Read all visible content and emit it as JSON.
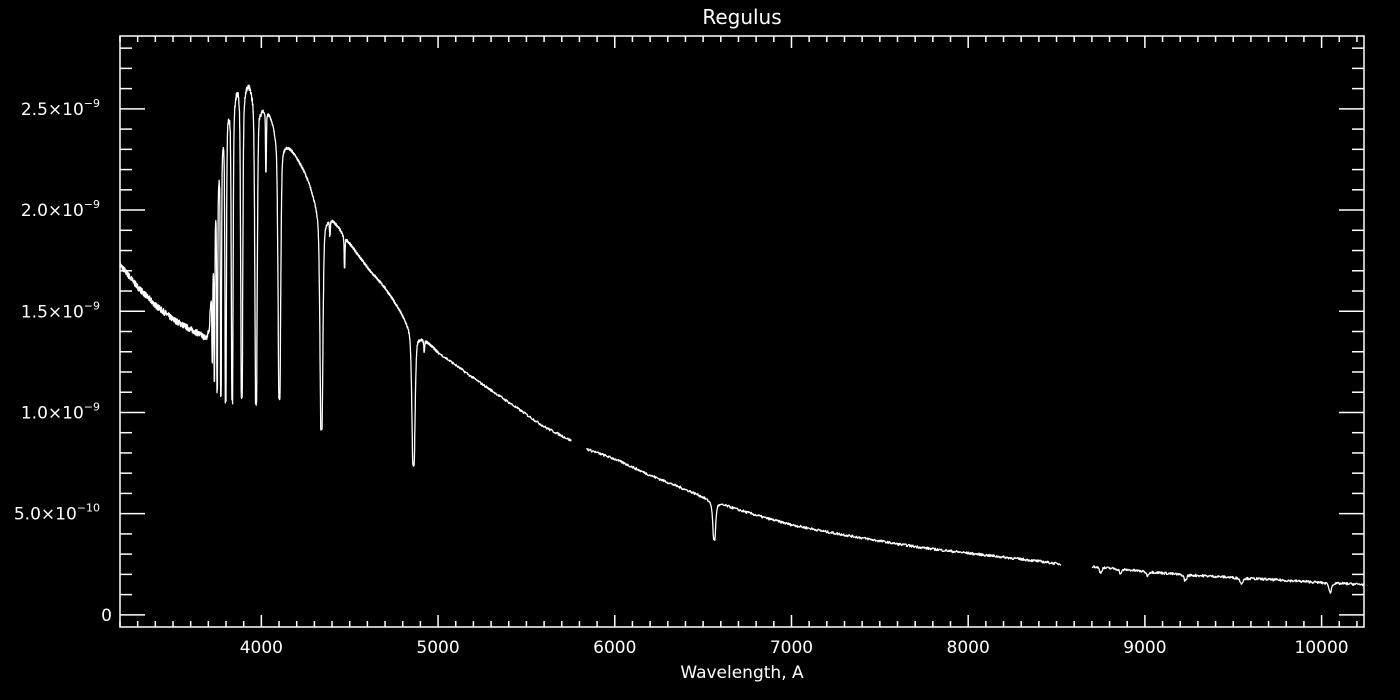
{
  "chart_data": {
    "type": "line",
    "title": "Regulus",
    "xlabel": "Wavelength, A",
    "ylabel": "",
    "xlim": [
      3200,
      10240
    ],
    "ylim": [
      -6e-11,
      2.86e-09
    ],
    "grid": false,
    "x_ticks": [
      {
        "value": 4000,
        "label": "4000"
      },
      {
        "value": 5000,
        "label": "5000"
      },
      {
        "value": 6000,
        "label": "6000"
      },
      {
        "value": 7000,
        "label": "7000"
      },
      {
        "value": 8000,
        "label": "8000"
      },
      {
        "value": 9000,
        "label": "9000"
      },
      {
        "value": 10000,
        "label": "10000"
      }
    ],
    "x_minor_step": 100,
    "y_ticks": [
      {
        "value": 0,
        "mant": "0",
        "exp": ""
      },
      {
        "value": 5e-10,
        "mant": "5.0×10",
        "exp": "−10"
      },
      {
        "value": 1e-09,
        "mant": "1.0×10",
        "exp": "−9"
      },
      {
        "value": 1.5e-09,
        "mant": "1.5×10",
        "exp": "−9"
      },
      {
        "value": 2e-09,
        "mant": "2.0×10",
        "exp": "−9"
      },
      {
        "value": 2.5e-09,
        "mant": "2.5×10",
        "exp": "−9"
      }
    ],
    "y_minor_step": 1e-10,
    "line_color": "#ffffff",
    "segments": [
      [
        3200,
        5755
      ],
      [
        5840,
        8525
      ],
      [
        8700,
        10240
      ]
    ],
    "continuum_unit": 1e-09,
    "continuum": [
      [
        3200,
        1.73
      ],
      [
        3300,
        1.62
      ],
      [
        3400,
        1.53
      ],
      [
        3500,
        1.46
      ],
      [
        3600,
        1.41
      ],
      [
        3690,
        1.37
      ],
      [
        3705,
        1.42
      ],
      [
        3720,
        1.7
      ],
      [
        3740,
        2.15
      ],
      [
        3770,
        2.5
      ],
      [
        3810,
        2.68
      ],
      [
        3870,
        2.78
      ],
      [
        3950,
        2.72
      ],
      [
        4000,
        2.6
      ],
      [
        4060,
        2.52
      ],
      [
        4150,
        2.36
      ],
      [
        4250,
        2.2
      ],
      [
        4330,
        2.05
      ],
      [
        4400,
        1.98
      ],
      [
        4500,
        1.84
      ],
      [
        4600,
        1.72
      ],
      [
        4700,
        1.62
      ],
      [
        4800,
        1.5
      ],
      [
        4900,
        1.4
      ],
      [
        5000,
        1.3
      ],
      [
        5200,
        1.17
      ],
      [
        5400,
        1.05
      ],
      [
        5600,
        0.93
      ],
      [
        5755,
        0.86
      ],
      [
        5840,
        0.82
      ],
      [
        6000,
        0.77
      ],
      [
        6200,
        0.69
      ],
      [
        6400,
        0.62
      ],
      [
        6550,
        0.57
      ],
      [
        6700,
        0.52
      ],
      [
        6850,
        0.48
      ],
      [
        7000,
        0.445
      ],
      [
        7200,
        0.41
      ],
      [
        7400,
        0.38
      ],
      [
        7600,
        0.35
      ],
      [
        7800,
        0.325
      ],
      [
        8000,
        0.305
      ],
      [
        8200,
        0.285
      ],
      [
        8400,
        0.265
      ],
      [
        8525,
        0.25
      ],
      [
        8700,
        0.24
      ],
      [
        9000,
        0.215
      ],
      [
        9200,
        0.2
      ],
      [
        9500,
        0.185
      ],
      [
        10000,
        0.16
      ],
      [
        10240,
        0.15
      ]
    ],
    "absorption_lines": [
      {
        "center": 3722,
        "min": 1.3,
        "width": 3
      },
      {
        "center": 3734,
        "min": 1.25,
        "width": 3
      },
      {
        "center": 3750,
        "min": 1.22,
        "width": 3.5
      },
      {
        "center": 3771,
        "min": 1.2,
        "width": 4
      },
      {
        "center": 3798,
        "min": 1.17,
        "width": 5
      },
      {
        "center": 3835,
        "min": 1.14,
        "width": 6
      },
      {
        "center": 3889,
        "min": 1.14,
        "width": 7
      },
      {
        "center": 3970,
        "min": 1.08,
        "width": 8
      },
      {
        "center": 4026,
        "min": 2.25,
        "width": 3
      },
      {
        "center": 4102,
        "min": 1.08,
        "width": 9
      },
      {
        "center": 4340,
        "min": 0.92,
        "width": 10
      },
      {
        "center": 4388,
        "min": 1.92,
        "width": 3
      },
      {
        "center": 4471,
        "min": 1.72,
        "width": 3
      },
      {
        "center": 4861,
        "min": 0.74,
        "width": 11
      },
      {
        "center": 4922,
        "min": 1.32,
        "width": 3
      },
      {
        "center": 6563,
        "min": 0.37,
        "width": 10
      },
      {
        "center": 8750,
        "min": 0.21,
        "width": 8
      },
      {
        "center": 8863,
        "min": 0.205,
        "width": 8
      },
      {
        "center": 9015,
        "min": 0.195,
        "width": 8
      },
      {
        "center": 9229,
        "min": 0.17,
        "width": 9
      },
      {
        "center": 9546,
        "min": 0.155,
        "width": 9
      },
      {
        "center": 10049,
        "min": 0.11,
        "width": 8
      }
    ]
  }
}
